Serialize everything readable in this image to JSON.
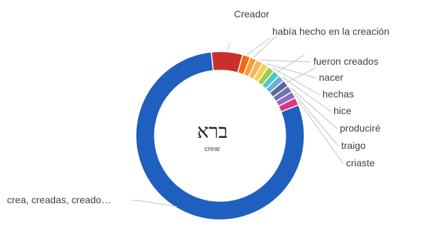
{
  "chart_data": {
    "type": "pie",
    "subtype": "donut",
    "center_text": "ברא",
    "center_subtext": "crear",
    "slices": [
      {
        "label": "Creador",
        "value": 6.0,
        "color": "#c9302c"
      },
      {
        "label": "había hecho en la creación",
        "value": 1.5,
        "color": "#f06a0f"
      },
      {
        "label": "",
        "value": 1.3,
        "color": "#f79b3b"
      },
      {
        "label": "fueron creados",
        "value": 1.3,
        "color": "#f4b858"
      },
      {
        "label": "nacer",
        "value": 1.3,
        "color": "#f1d356"
      },
      {
        "label": "hechas",
        "value": 1.3,
        "color": "#9ccf3f"
      },
      {
        "label": "",
        "value": 1.3,
        "color": "#4ec7c8"
      },
      {
        "label": "hice",
        "value": 1.3,
        "color": "#6aaee0"
      },
      {
        "label": "",
        "value": 1.3,
        "color": "#5c6a93"
      },
      {
        "label": "produciré",
        "value": 1.3,
        "color": "#6f73b4"
      },
      {
        "label": "traigo",
        "value": 1.3,
        "color": "#8d6cc3"
      },
      {
        "label": "criaste",
        "value": 1.5,
        "color": "#d83a7c"
      },
      {
        "label": "crea, creadas, creado…",
        "value": 79.2,
        "color": "#1f5fbf"
      }
    ]
  }
}
